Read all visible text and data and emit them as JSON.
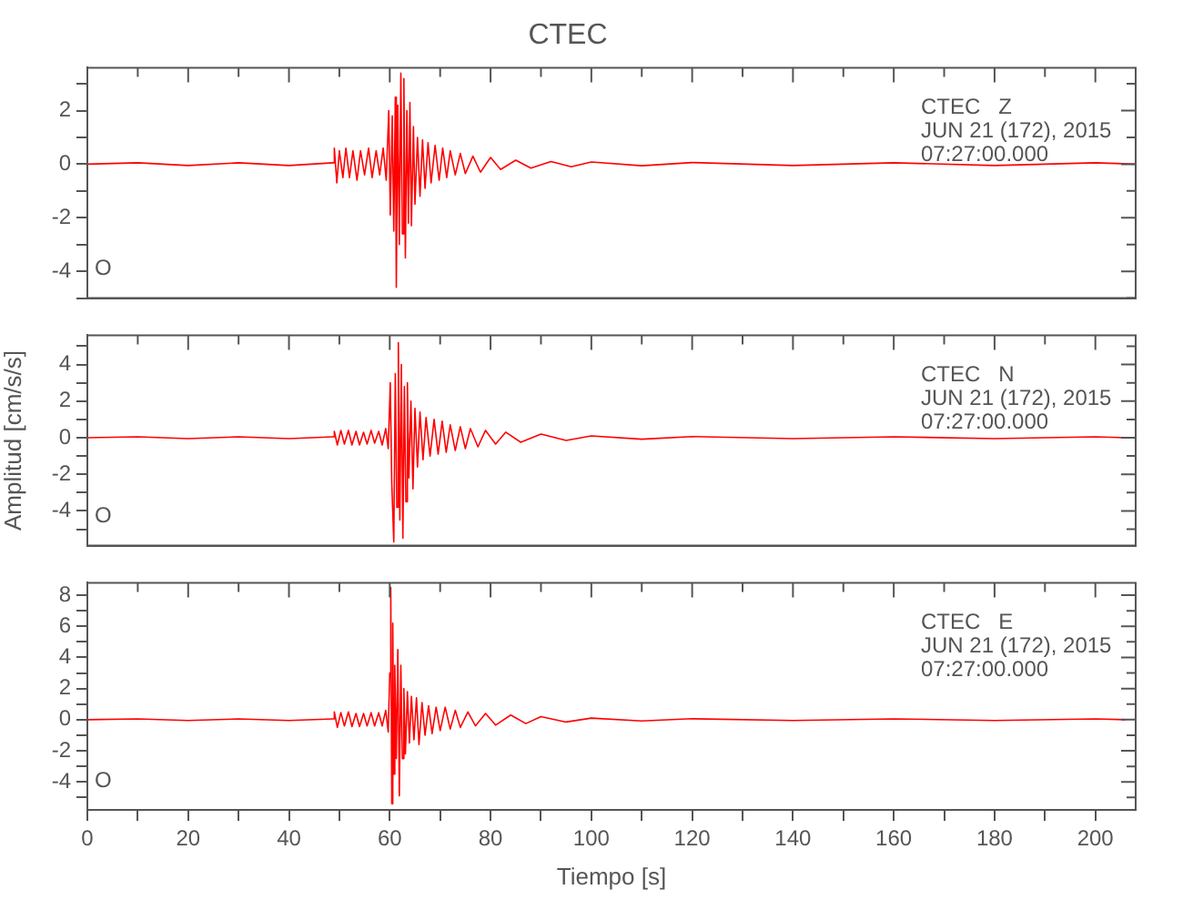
{
  "chart_data": [
    {
      "type": "line",
      "title": "CTEC",
      "annotations": [
        "CTEC   Z",
        "JUN 21 (172), 2015",
        "07:27:00.000",
        "O"
      ],
      "xlim": [
        0,
        208
      ],
      "xticks": [
        0,
        {
          "value": 10,
          "label": null
        },
        20,
        {
          "value": 30,
          "label": null
        },
        40,
        {
          "value": 50,
          "label": null
        },
        60,
        {
          "value": 70,
          "label": null
        },
        80,
        {
          "value": 90,
          "label": null
        },
        100,
        {
          "value": 110,
          "label": null
        },
        120,
        {
          "value": 130,
          "label": null
        },
        140,
        {
          "value": 150,
          "label": null
        },
        160,
        {
          "value": 170,
          "label": null
        },
        180,
        {
          "value": 190,
          "label": null
        },
        200
      ],
      "ylim": [
        -5,
        3.6
      ],
      "yticks": [
        {
          "value": -5,
          "label": null
        },
        -4,
        {
          "value": -3,
          "label": null
        },
        -2,
        {
          "value": -1,
          "label": null
        },
        0,
        {
          "value": 1,
          "label": null
        },
        2,
        {
          "value": 3,
          "label": null
        }
      ],
      "tick_labels": "y",
      "grid": false,
      "legend": false,
      "series": [
        {
          "color": "#ff0000",
          "x": [
            0,
            10,
            20,
            30,
            40,
            48.8,
            49,
            49.5,
            50,
            50.7,
            51.3,
            52,
            52.7,
            53.5,
            54.2,
            55,
            55.8,
            56.5,
            57.3,
            58,
            58.7,
            59.3,
            59.8,
            60.1,
            60.5,
            60.8,
            61.1,
            61.3,
            61.6,
            61.9,
            62.2,
            62.5,
            62.8,
            63.1,
            63.4,
            63.7,
            64,
            64.3,
            64.7,
            65,
            65.5,
            66,
            66.5,
            67,
            67.6,
            68.2,
            69,
            69.8,
            70.5,
            71.3,
            72,
            73,
            74,
            75,
            76.5,
            78,
            80,
            82,
            85,
            88,
            92,
            96,
            100,
            110,
            120,
            140,
            160,
            180,
            200,
            208
          ],
          "values": [
            0,
            0.05,
            -0.05,
            0.05,
            -0.05,
            0.05,
            0.6,
            -0.7,
            0.5,
            -0.5,
            0.6,
            -0.5,
            0.5,
            -0.6,
            0.5,
            -0.4,
            0.6,
            -0.5,
            0.5,
            -0.4,
            0.6,
            -0.6,
            2,
            -1.9,
            1.8,
            -2.5,
            2.5,
            -4.6,
            2.2,
            -3,
            3.4,
            -2.6,
            3.2,
            -3.5,
            2,
            -2.2,
            2.3,
            -2.3,
            1.4,
            -1.5,
            1,
            -1.2,
            0.9,
            -0.9,
            0.8,
            -0.7,
            0.7,
            -0.6,
            0.6,
            -0.5,
            0.5,
            -0.4,
            0.4,
            -0.35,
            0.3,
            -0.3,
            0.25,
            -0.2,
            0.15,
            -0.15,
            0.1,
            -0.1,
            0.08,
            -0.06,
            0.06,
            -0.05,
            0.05,
            -0.05,
            0.05,
            0
          ]
        }
      ]
    },
    {
      "type": "line",
      "ylabel": "Amplitud [cm/s/s]",
      "annotations": [
        "CTEC   N",
        "JUN 21 (172), 2015",
        "07:27:00.000",
        "O"
      ],
      "xlim": [
        0,
        208
      ],
      "xticks": [
        0,
        {
          "value": 10,
          "label": null
        },
        20,
        {
          "value": 30,
          "label": null
        },
        40,
        {
          "value": 50,
          "label": null
        },
        60,
        {
          "value": 70,
          "label": null
        },
        80,
        {
          "value": 90,
          "label": null
        },
        100,
        {
          "value": 110,
          "label": null
        },
        120,
        {
          "value": 130,
          "label": null
        },
        140,
        {
          "value": 150,
          "label": null
        },
        160,
        {
          "value": 170,
          "label": null
        },
        180,
        {
          "value": 190,
          "label": null
        },
        200
      ],
      "ylim": [
        -5.9,
        5.6
      ],
      "yticks": [
        {
          "value": -5,
          "label": null
        },
        -4,
        {
          "value": -3,
          "label": null
        },
        -2,
        {
          "value": -1,
          "label": null
        },
        0,
        {
          "value": 1,
          "label": null
        },
        2,
        {
          "value": 3,
          "label": null
        },
        4,
        {
          "value": 5,
          "label": null
        }
      ],
      "tick_labels": "y",
      "grid": false,
      "legend": false,
      "series": [
        {
          "color": "#ff0000",
          "x": [
            0,
            10,
            20,
            30,
            40,
            48.8,
            49,
            49.6,
            50.3,
            51,
            51.8,
            52.5,
            53.3,
            54,
            54.8,
            55.5,
            56.3,
            57,
            57.8,
            58.5,
            59.2,
            59.7,
            60.1,
            60.4,
            60.8,
            61.1,
            61.4,
            61.7,
            62,
            62.3,
            62.6,
            62.9,
            63.2,
            63.5,
            63.8,
            64.2,
            64.6,
            65,
            65.5,
            66,
            66.6,
            67.2,
            68,
            68.8,
            69.6,
            70.4,
            71.2,
            72,
            73,
            74,
            75,
            76,
            77.5,
            79,
            81,
            83,
            86,
            90,
            95,
            100,
            110,
            120,
            140,
            160,
            180,
            200,
            206
          ],
          "values": [
            0,
            0.05,
            -0.05,
            0.05,
            -0.05,
            0.05,
            0.35,
            -0.4,
            0.4,
            -0.35,
            0.4,
            -0.4,
            0.35,
            -0.4,
            0.3,
            -0.35,
            0.4,
            -0.3,
            0.35,
            -0.4,
            0.5,
            -0.6,
            3,
            -2.5,
            -5.7,
            3.5,
            -3.8,
            5.2,
            -4.5,
            4,
            -5.5,
            2.8,
            -3.5,
            3,
            -2.2,
            2,
            -2.8,
            1.6,
            -1.6,
            1.4,
            -1.2,
            1.1,
            -1,
            1,
            -0.9,
            0.9,
            -0.8,
            0.7,
            -0.7,
            0.6,
            -0.6,
            0.5,
            -0.5,
            0.4,
            -0.35,
            0.3,
            -0.25,
            0.2,
            -0.15,
            0.1,
            -0.08,
            0.06,
            -0.05,
            0.05,
            -0.05,
            0.05,
            0
          ]
        }
      ]
    },
    {
      "type": "line",
      "xlabel": "Tiempo [s]",
      "annotations": [
        "CTEC   E",
        "JUN 21 (172), 2015",
        "07:27:00.000",
        "O"
      ],
      "xlim": [
        0,
        208
      ],
      "xticks": [
        0,
        {
          "value": 10,
          "label": null
        },
        20,
        {
          "value": 30,
          "label": null
        },
        40,
        {
          "value": 50,
          "label": null
        },
        60,
        {
          "value": 70,
          "label": null
        },
        80,
        {
          "value": 90,
          "label": null
        },
        100,
        {
          "value": 110,
          "label": null
        },
        120,
        {
          "value": 130,
          "label": null
        },
        140,
        {
          "value": 150,
          "label": null
        },
        160,
        {
          "value": 170,
          "label": null
        },
        180,
        {
          "value": 190,
          "label": null
        },
        200
      ],
      "ylim": [
        -5.8,
        8.8
      ],
      "yticks": [
        {
          "value": -5,
          "label": null
        },
        -4,
        {
          "value": -3,
          "label": null
        },
        -2,
        {
          "value": -1,
          "label": null
        },
        0,
        {
          "value": 1,
          "label": null
        },
        2,
        {
          "value": 3,
          "label": null
        },
        4,
        {
          "value": 5,
          "label": null
        },
        6,
        {
          "value": 7,
          "label": null
        },
        8
      ],
      "grid": false,
      "legend": false,
      "series": [
        {
          "color": "#ff0000",
          "x": [
            0,
            10,
            20,
            30,
            40,
            48.8,
            49,
            49.6,
            50.3,
            51,
            51.8,
            52.5,
            53.3,
            54,
            54.8,
            55.5,
            56.3,
            57,
            57.8,
            58.5,
            59.2,
            59.7,
            60,
            60.2,
            60.4,
            60.6,
            60.8,
            61,
            61.3,
            61.6,
            61.9,
            62.2,
            62.5,
            62.8,
            63.1,
            63.5,
            63.9,
            64.3,
            64.8,
            65.3,
            65.8,
            66.4,
            67,
            67.7,
            68.4,
            69.2,
            70,
            71,
            72,
            73,
            74,
            75.5,
            77,
            79,
            81,
            84,
            87,
            90,
            95,
            100,
            110,
            120,
            140,
            160,
            180,
            200,
            206
          ],
          "values": [
            0,
            0.05,
            -0.05,
            0.05,
            -0.05,
            0.05,
            0.5,
            -0.5,
            0.45,
            -0.4,
            0.5,
            -0.45,
            0.4,
            -0.45,
            0.4,
            -0.4,
            0.45,
            -0.4,
            0.45,
            -0.4,
            0.6,
            -0.8,
            3,
            8.5,
            -5.4,
            6.2,
            -3.5,
            3.5,
            -2.5,
            4.5,
            -4.9,
            3.5,
            -2.5,
            2,
            -2.2,
            1.8,
            -1.5,
            1.5,
            -1.3,
            1.4,
            -1.6,
            1.1,
            -1,
            0.9,
            -0.9,
            0.8,
            -0.7,
            0.8,
            -0.6,
            0.6,
            -0.5,
            0.5,
            -0.4,
            0.4,
            -0.35,
            0.3,
            -0.25,
            0.2,
            -0.15,
            0.1,
            -0.08,
            0.06,
            -0.05,
            0.05,
            -0.05,
            0.05,
            0
          ]
        }
      ]
    }
  ]
}
